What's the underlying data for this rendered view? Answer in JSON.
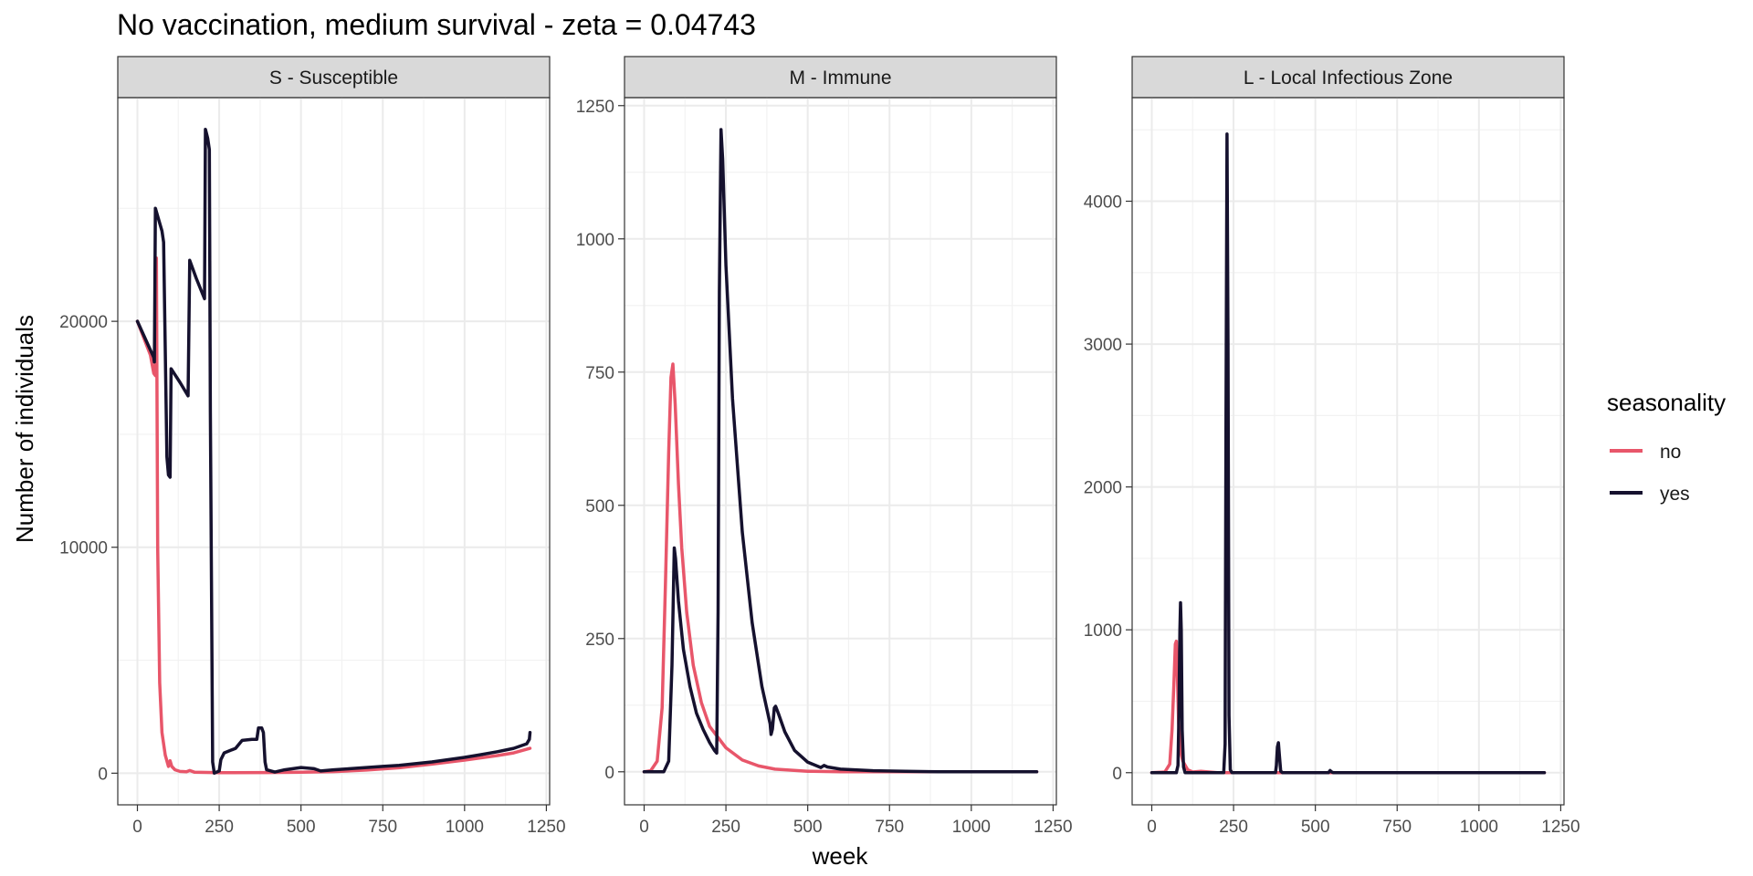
{
  "chart_data": {
    "type": "line",
    "title": "No vaccination, medium survival - zeta = 0.04743",
    "xlabel": "week",
    "ylabel": "Number of individuals",
    "legend": {
      "title": "seasonality",
      "placement": "right",
      "entries": [
        {
          "label": "no",
          "color": "#E8566A"
        },
        {
          "label": "yes",
          "color": "#15112E"
        }
      ]
    },
    "grid": true,
    "panels": [
      {
        "strip": "S - Susceptible",
        "xlim": [
          -60,
          1260
        ],
        "ylim": [
          -1400,
          29900
        ],
        "xticks": [
          0,
          250,
          500,
          750,
          1000,
          1250
        ],
        "xtick_labels": [
          "0",
          "250",
          "500",
          "750",
          "1000",
          "1250"
        ],
        "yticks": [
          0,
          10000,
          20000
        ],
        "ytick_labels": [
          "0",
          "10000",
          "20000"
        ],
        "series": [
          {
            "name": "no",
            "color": "#E8566A",
            "points": [
              [
                0,
                20000
              ],
              [
                40,
                18500
              ],
              [
                50,
                17700
              ],
              [
                55,
                17600
              ],
              [
                58,
                22800
              ],
              [
                62,
                10000
              ],
              [
                68,
                4000
              ],
              [
                75,
                1800
              ],
              [
                85,
                800
              ],
              [
                95,
                300
              ],
              [
                100,
                550
              ],
              [
                105,
                300
              ],
              [
                115,
                150
              ],
              [
                130,
                80
              ],
              [
                150,
                60
              ],
              [
                160,
                120
              ],
              [
                175,
                40
              ],
              [
                250,
                20
              ],
              [
                400,
                30
              ],
              [
                500,
                40
              ],
              [
                600,
                70
              ],
              [
                700,
                140
              ],
              [
                800,
                240
              ],
              [
                900,
                400
              ],
              [
                1000,
                580
              ],
              [
                1100,
                780
              ],
              [
                1150,
                900
              ],
              [
                1200,
                1100
              ]
            ]
          },
          {
            "name": "yes",
            "color": "#15112E",
            "points": [
              [
                0,
                20000
              ],
              [
                50,
                18400
              ],
              [
                52,
                18200
              ],
              [
                55,
                25000
              ],
              [
                75,
                24000
              ],
              [
                80,
                23500
              ],
              [
                90,
                14000
              ],
              [
                95,
                13200
              ],
              [
                100,
                13100
              ],
              [
                103,
                17900
              ],
              [
                130,
                17300
              ],
              [
                155,
                16700
              ],
              [
                160,
                22700
              ],
              [
                180,
                21900
              ],
              [
                205,
                21000
              ],
              [
                208,
                28500
              ],
              [
                215,
                28100
              ],
              [
                220,
                27600
              ],
              [
                223,
                16000
              ],
              [
                230,
                500
              ],
              [
                235,
                0
              ],
              [
                250,
                100
              ],
              [
                255,
                600
              ],
              [
                265,
                900
              ],
              [
                300,
                1100
              ],
              [
                320,
                1450
              ],
              [
                350,
                1500
              ],
              [
                365,
                1500
              ],
              [
                370,
                2000
              ],
              [
                380,
                2000
              ],
              [
                385,
                1800
              ],
              [
                390,
                500
              ],
              [
                395,
                150
              ],
              [
                420,
                50
              ],
              [
                450,
                150
              ],
              [
                500,
                250
              ],
              [
                540,
                200
              ],
              [
                560,
                100
              ],
              [
                600,
                150
              ],
              [
                650,
                200
              ],
              [
                700,
                250
              ],
              [
                750,
                300
              ],
              [
                800,
                350
              ],
              [
                850,
                420
              ],
              [
                900,
                500
              ],
              [
                950,
                600
              ],
              [
                1000,
                700
              ],
              [
                1050,
                820
              ],
              [
                1100,
                950
              ],
              [
                1150,
                1100
              ],
              [
                1190,
                1300
              ],
              [
                1198,
                1500
              ],
              [
                1200,
                1800
              ]
            ]
          }
        ]
      },
      {
        "strip": "M - Immune",
        "xlim": [
          -60,
          1260
        ],
        "ylim": [
          -62,
          1265
        ],
        "xticks": [
          0,
          250,
          500,
          750,
          1000,
          1250
        ],
        "xtick_labels": [
          "0",
          "250",
          "500",
          "750",
          "1000",
          "1250"
        ],
        "yticks": [
          0,
          250,
          500,
          750,
          1000,
          1250
        ],
        "ytick_labels": [
          "0",
          "250",
          "500",
          "750",
          "1000",
          "1250"
        ],
        "series": [
          {
            "name": "no",
            "color": "#E8566A",
            "points": [
              [
                0,
                0
              ],
              [
                20,
                2
              ],
              [
                40,
                20
              ],
              [
                55,
                120
              ],
              [
                65,
                350
              ],
              [
                75,
                600
              ],
              [
                82,
                740
              ],
              [
                88,
                765
              ],
              [
                95,
                690
              ],
              [
                105,
                540
              ],
              [
                115,
                420
              ],
              [
                130,
                300
              ],
              [
                150,
                200
              ],
              [
                175,
                130
              ],
              [
                200,
                85
              ],
              [
                250,
                45
              ],
              [
                300,
                22
              ],
              [
                350,
                11
              ],
              [
                400,
                5
              ],
              [
                500,
                1
              ],
              [
                600,
                0
              ],
              [
                1200,
                0
              ]
            ]
          },
          {
            "name": "yes",
            "color": "#15112E",
            "points": [
              [
                0,
                0
              ],
              [
                60,
                0
              ],
              [
                75,
                20
              ],
              [
                85,
                200
              ],
              [
                92,
                420
              ],
              [
                96,
                400
              ],
              [
                105,
                320
              ],
              [
                120,
                230
              ],
              [
                140,
                160
              ],
              [
                160,
                110
              ],
              [
                180,
                80
              ],
              [
                200,
                55
              ],
              [
                215,
                40
              ],
              [
                222,
                35
              ],
              [
                226,
                300
              ],
              [
                230,
                900
              ],
              [
                235,
                1205
              ],
              [
                240,
                1150
              ],
              [
                250,
                950
              ],
              [
                270,
                700
              ],
              [
                300,
                450
              ],
              [
                330,
                280
              ],
              [
                360,
                160
              ],
              [
                385,
                90
              ],
              [
                388,
                70
              ],
              [
                392,
                80
              ],
              [
                398,
                120
              ],
              [
                402,
                123
              ],
              [
                410,
                110
              ],
              [
                430,
                75
              ],
              [
                460,
                40
              ],
              [
                500,
                18
              ],
              [
                540,
                8
              ],
              [
                550,
                12
              ],
              [
                560,
                9
              ],
              [
                600,
                5
              ],
              [
                700,
                2
              ],
              [
                800,
                1
              ],
              [
                900,
                0
              ],
              [
                1200,
                0
              ]
            ]
          }
        ]
      },
      {
        "strip": "L - Local Infectious Zone",
        "xlim": [
          -60,
          1260
        ],
        "ylim": [
          -225,
          4725
        ],
        "xticks": [
          0,
          250,
          500,
          750,
          1000,
          1250
        ],
        "xtick_labels": [
          "0",
          "250",
          "500",
          "750",
          "1000",
          "1250"
        ],
        "yticks": [
          0,
          1000,
          2000,
          3000,
          4000
        ],
        "ytick_labels": [
          "0",
          "1000",
          "2000",
          "3000",
          "4000"
        ],
        "series": [
          {
            "name": "no",
            "color": "#E8566A",
            "points": [
              [
                0,
                0
              ],
              [
                40,
                5
              ],
              [
                55,
                60
              ],
              [
                62,
                300
              ],
              [
                68,
                650
              ],
              [
                72,
                900
              ],
              [
                75,
                920
              ],
              [
                78,
                700
              ],
              [
                82,
                350
              ],
              [
                88,
                150
              ],
              [
                95,
                80
              ],
              [
                100,
                60
              ],
              [
                110,
                20
              ],
              [
                125,
                5
              ],
              [
                150,
                10
              ],
              [
                200,
                0
              ],
              [
                1200,
                0
              ]
            ]
          },
          {
            "name": "yes",
            "color": "#15112E",
            "points": [
              [
                0,
                0
              ],
              [
                75,
                0
              ],
              [
                80,
                50
              ],
              [
                83,
                400
              ],
              [
                86,
                1000
              ],
              [
                88,
                1190
              ],
              [
                90,
                1000
              ],
              [
                93,
                300
              ],
              [
                97,
                40
              ],
              [
                102,
                0
              ],
              [
                220,
                0
              ],
              [
                224,
                200
              ],
              [
                227,
                2500
              ],
              [
                230,
                4470
              ],
              [
                233,
                3000
              ],
              [
                236,
                400
              ],
              [
                240,
                20
              ],
              [
                245,
                0
              ],
              [
                378,
                0
              ],
              [
                381,
                50
              ],
              [
                384,
                180
              ],
              [
                387,
                210
              ],
              [
                390,
                120
              ],
              [
                394,
                10
              ],
              [
                400,
                0
              ],
              [
                540,
                0
              ],
              [
                545,
                15
              ],
              [
                550,
                5
              ],
              [
                555,
                0
              ],
              [
                1200,
                0
              ]
            ]
          }
        ]
      }
    ]
  }
}
